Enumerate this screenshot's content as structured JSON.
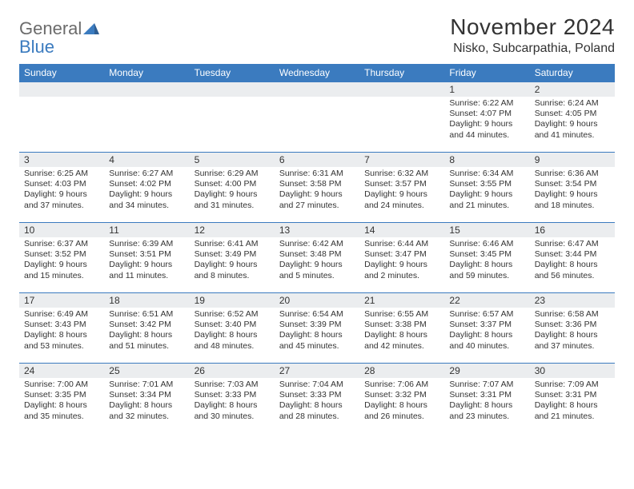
{
  "logo": {
    "line1": "General",
    "line2": "Blue"
  },
  "title": "November 2024",
  "location": "Nisko, Subcarpathia, Poland",
  "colors": {
    "header_bg": "#3b7bbf",
    "header_fg": "#ffffff",
    "daynum_bg": "#ebedef",
    "border": "#3b7bbf",
    "text": "#333333",
    "logo_gray": "#6b6b6b",
    "logo_blue": "#3b7bbf"
  },
  "weekdays": [
    "Sunday",
    "Monday",
    "Tuesday",
    "Wednesday",
    "Thursday",
    "Friday",
    "Saturday"
  ],
  "weeks": [
    [
      {
        "n": "",
        "sunrise": "",
        "sunset": "",
        "daylight": ""
      },
      {
        "n": "",
        "sunrise": "",
        "sunset": "",
        "daylight": ""
      },
      {
        "n": "",
        "sunrise": "",
        "sunset": "",
        "daylight": ""
      },
      {
        "n": "",
        "sunrise": "",
        "sunset": "",
        "daylight": ""
      },
      {
        "n": "",
        "sunrise": "",
        "sunset": "",
        "daylight": ""
      },
      {
        "n": "1",
        "sunrise": "Sunrise: 6:22 AM",
        "sunset": "Sunset: 4:07 PM",
        "daylight": "Daylight: 9 hours and 44 minutes."
      },
      {
        "n": "2",
        "sunrise": "Sunrise: 6:24 AM",
        "sunset": "Sunset: 4:05 PM",
        "daylight": "Daylight: 9 hours and 41 minutes."
      }
    ],
    [
      {
        "n": "3",
        "sunrise": "Sunrise: 6:25 AM",
        "sunset": "Sunset: 4:03 PM",
        "daylight": "Daylight: 9 hours and 37 minutes."
      },
      {
        "n": "4",
        "sunrise": "Sunrise: 6:27 AM",
        "sunset": "Sunset: 4:02 PM",
        "daylight": "Daylight: 9 hours and 34 minutes."
      },
      {
        "n": "5",
        "sunrise": "Sunrise: 6:29 AM",
        "sunset": "Sunset: 4:00 PM",
        "daylight": "Daylight: 9 hours and 31 minutes."
      },
      {
        "n": "6",
        "sunrise": "Sunrise: 6:31 AM",
        "sunset": "Sunset: 3:58 PM",
        "daylight": "Daylight: 9 hours and 27 minutes."
      },
      {
        "n": "7",
        "sunrise": "Sunrise: 6:32 AM",
        "sunset": "Sunset: 3:57 PM",
        "daylight": "Daylight: 9 hours and 24 minutes."
      },
      {
        "n": "8",
        "sunrise": "Sunrise: 6:34 AM",
        "sunset": "Sunset: 3:55 PM",
        "daylight": "Daylight: 9 hours and 21 minutes."
      },
      {
        "n": "9",
        "sunrise": "Sunrise: 6:36 AM",
        "sunset": "Sunset: 3:54 PM",
        "daylight": "Daylight: 9 hours and 18 minutes."
      }
    ],
    [
      {
        "n": "10",
        "sunrise": "Sunrise: 6:37 AM",
        "sunset": "Sunset: 3:52 PM",
        "daylight": "Daylight: 9 hours and 15 minutes."
      },
      {
        "n": "11",
        "sunrise": "Sunrise: 6:39 AM",
        "sunset": "Sunset: 3:51 PM",
        "daylight": "Daylight: 9 hours and 11 minutes."
      },
      {
        "n": "12",
        "sunrise": "Sunrise: 6:41 AM",
        "sunset": "Sunset: 3:49 PM",
        "daylight": "Daylight: 9 hours and 8 minutes."
      },
      {
        "n": "13",
        "sunrise": "Sunrise: 6:42 AM",
        "sunset": "Sunset: 3:48 PM",
        "daylight": "Daylight: 9 hours and 5 minutes."
      },
      {
        "n": "14",
        "sunrise": "Sunrise: 6:44 AM",
        "sunset": "Sunset: 3:47 PM",
        "daylight": "Daylight: 9 hours and 2 minutes."
      },
      {
        "n": "15",
        "sunrise": "Sunrise: 6:46 AM",
        "sunset": "Sunset: 3:45 PM",
        "daylight": "Daylight: 8 hours and 59 minutes."
      },
      {
        "n": "16",
        "sunrise": "Sunrise: 6:47 AM",
        "sunset": "Sunset: 3:44 PM",
        "daylight": "Daylight: 8 hours and 56 minutes."
      }
    ],
    [
      {
        "n": "17",
        "sunrise": "Sunrise: 6:49 AM",
        "sunset": "Sunset: 3:43 PM",
        "daylight": "Daylight: 8 hours and 53 minutes."
      },
      {
        "n": "18",
        "sunrise": "Sunrise: 6:51 AM",
        "sunset": "Sunset: 3:42 PM",
        "daylight": "Daylight: 8 hours and 51 minutes."
      },
      {
        "n": "19",
        "sunrise": "Sunrise: 6:52 AM",
        "sunset": "Sunset: 3:40 PM",
        "daylight": "Daylight: 8 hours and 48 minutes."
      },
      {
        "n": "20",
        "sunrise": "Sunrise: 6:54 AM",
        "sunset": "Sunset: 3:39 PM",
        "daylight": "Daylight: 8 hours and 45 minutes."
      },
      {
        "n": "21",
        "sunrise": "Sunrise: 6:55 AM",
        "sunset": "Sunset: 3:38 PM",
        "daylight": "Daylight: 8 hours and 42 minutes."
      },
      {
        "n": "22",
        "sunrise": "Sunrise: 6:57 AM",
        "sunset": "Sunset: 3:37 PM",
        "daylight": "Daylight: 8 hours and 40 minutes."
      },
      {
        "n": "23",
        "sunrise": "Sunrise: 6:58 AM",
        "sunset": "Sunset: 3:36 PM",
        "daylight": "Daylight: 8 hours and 37 minutes."
      }
    ],
    [
      {
        "n": "24",
        "sunrise": "Sunrise: 7:00 AM",
        "sunset": "Sunset: 3:35 PM",
        "daylight": "Daylight: 8 hours and 35 minutes."
      },
      {
        "n": "25",
        "sunrise": "Sunrise: 7:01 AM",
        "sunset": "Sunset: 3:34 PM",
        "daylight": "Daylight: 8 hours and 32 minutes."
      },
      {
        "n": "26",
        "sunrise": "Sunrise: 7:03 AM",
        "sunset": "Sunset: 3:33 PM",
        "daylight": "Daylight: 8 hours and 30 minutes."
      },
      {
        "n": "27",
        "sunrise": "Sunrise: 7:04 AM",
        "sunset": "Sunset: 3:33 PM",
        "daylight": "Daylight: 8 hours and 28 minutes."
      },
      {
        "n": "28",
        "sunrise": "Sunrise: 7:06 AM",
        "sunset": "Sunset: 3:32 PM",
        "daylight": "Daylight: 8 hours and 26 minutes."
      },
      {
        "n": "29",
        "sunrise": "Sunrise: 7:07 AM",
        "sunset": "Sunset: 3:31 PM",
        "daylight": "Daylight: 8 hours and 23 minutes."
      },
      {
        "n": "30",
        "sunrise": "Sunrise: 7:09 AM",
        "sunset": "Sunset: 3:31 PM",
        "daylight": "Daylight: 8 hours and 21 minutes."
      }
    ]
  ]
}
